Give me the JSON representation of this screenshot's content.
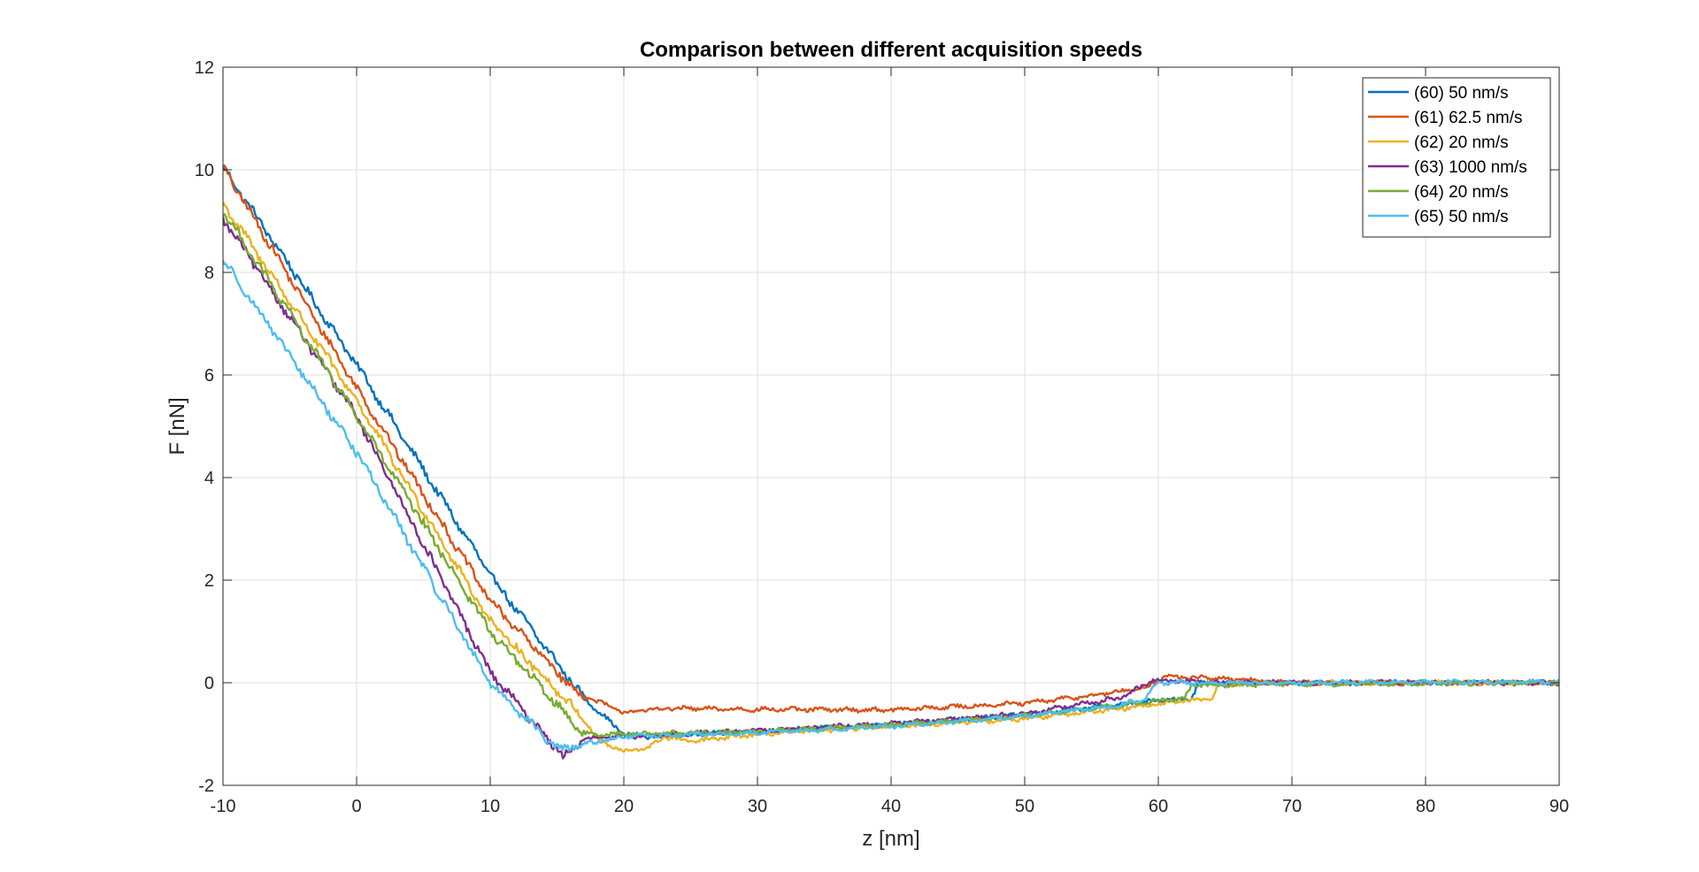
{
  "chart_data": {
    "type": "line",
    "title": "Comparison between different acquisition speeds",
    "xlabel": "z [nm]",
    "ylabel": "F [nN]",
    "xlim": [
      -10,
      90
    ],
    "ylim": [
      -2,
      12
    ],
    "xticks": [
      -10,
      0,
      10,
      20,
      30,
      40,
      50,
      60,
      70,
      80,
      90
    ],
    "yticks": [
      -2,
      0,
      2,
      4,
      6,
      8,
      10,
      12
    ],
    "grid": true,
    "legend_position": "top-right",
    "series": [
      {
        "name": "(60) 50 nm/s",
        "color": "#0072BD",
        "points": [
          [
            -10,
            10.05
          ],
          [
            0,
            6.2
          ],
          [
            10,
            2.1
          ],
          [
            17,
            -0.3
          ],
          [
            20,
            -1.0
          ],
          [
            22,
            -1.05
          ],
          [
            30,
            -0.95
          ],
          [
            40,
            -0.82
          ],
          [
            50,
            -0.62
          ],
          [
            60,
            -0.35
          ],
          [
            62.5,
            -0.3
          ],
          [
            63,
            0.0
          ],
          [
            70,
            0.0
          ],
          [
            90,
            0.0
          ]
        ]
      },
      {
        "name": "(61) 62.5 nm/s",
        "color": "#D95319",
        "points": [
          [
            -10,
            10.05
          ],
          [
            0,
            5.75
          ],
          [
            10,
            1.6
          ],
          [
            16.5,
            -0.2
          ],
          [
            20,
            -0.58
          ],
          [
            23,
            -0.5
          ],
          [
            30,
            -0.52
          ],
          [
            40,
            -0.53
          ],
          [
            50,
            -0.4
          ],
          [
            55,
            -0.25
          ],
          [
            59,
            -0.1
          ],
          [
            60.5,
            0.12
          ],
          [
            65,
            0.08
          ],
          [
            70,
            0.0
          ],
          [
            80,
            0.0
          ],
          [
            90,
            0.0
          ]
        ]
      },
      {
        "name": "(62) 20 nm/s",
        "color": "#EDB120",
        "points": [
          [
            -10,
            9.35
          ],
          [
            0,
            5.5
          ],
          [
            10,
            1.2
          ],
          [
            17,
            -0.7
          ],
          [
            18,
            -1.1
          ],
          [
            20,
            -1.35
          ],
          [
            22,
            -1.25
          ],
          [
            23,
            -1.05
          ],
          [
            25,
            -1.15
          ],
          [
            30,
            -1.0
          ],
          [
            40,
            -0.85
          ],
          [
            50,
            -0.7
          ],
          [
            60,
            -0.42
          ],
          [
            64,
            -0.3
          ],
          [
            64.5,
            -0.05
          ],
          [
            70,
            0.0
          ],
          [
            90,
            0.0
          ]
        ]
      },
      {
        "name": "(63) 1000 nm/s",
        "color": "#7E2F8E",
        "points": [
          [
            -10,
            9.05
          ],
          [
            0,
            5.2
          ],
          [
            10,
            0.2
          ],
          [
            15.5,
            -1.45
          ],
          [
            17,
            -1.1
          ],
          [
            20,
            -1.05
          ],
          [
            30,
            -0.93
          ],
          [
            40,
            -0.8
          ],
          [
            50,
            -0.6
          ],
          [
            57,
            -0.3
          ],
          [
            59,
            -0.05
          ],
          [
            59.5,
            0.05
          ],
          [
            65,
            0.0
          ],
          [
            90,
            0.0
          ]
        ]
      },
      {
        "name": "(64) 20 nm/s",
        "color": "#77AC30",
        "points": [
          [
            -10,
            9.2
          ],
          [
            0,
            5.2
          ],
          [
            10,
            1.0
          ],
          [
            17,
            -1.0
          ],
          [
            20,
            -1.0
          ],
          [
            30,
            -0.95
          ],
          [
            40,
            -0.82
          ],
          [
            50,
            -0.65
          ],
          [
            62,
            -0.3
          ],
          [
            62.5,
            -0.05
          ],
          [
            70,
            -0.02
          ],
          [
            90,
            0.0
          ]
        ]
      },
      {
        "name": "(65) 50 nm/s",
        "color": "#4DBEEE",
        "points": [
          [
            -10,
            8.25
          ],
          [
            0,
            4.5
          ],
          [
            10,
            0.0
          ],
          [
            15,
            -1.3
          ],
          [
            17,
            -1.2
          ],
          [
            20,
            -1.05
          ],
          [
            30,
            -0.98
          ],
          [
            40,
            -0.85
          ],
          [
            50,
            -0.65
          ],
          [
            57,
            -0.45
          ],
          [
            59,
            -0.3
          ],
          [
            60,
            0.0
          ],
          [
            70,
            0.0
          ],
          [
            90,
            0.02
          ]
        ]
      }
    ]
  }
}
